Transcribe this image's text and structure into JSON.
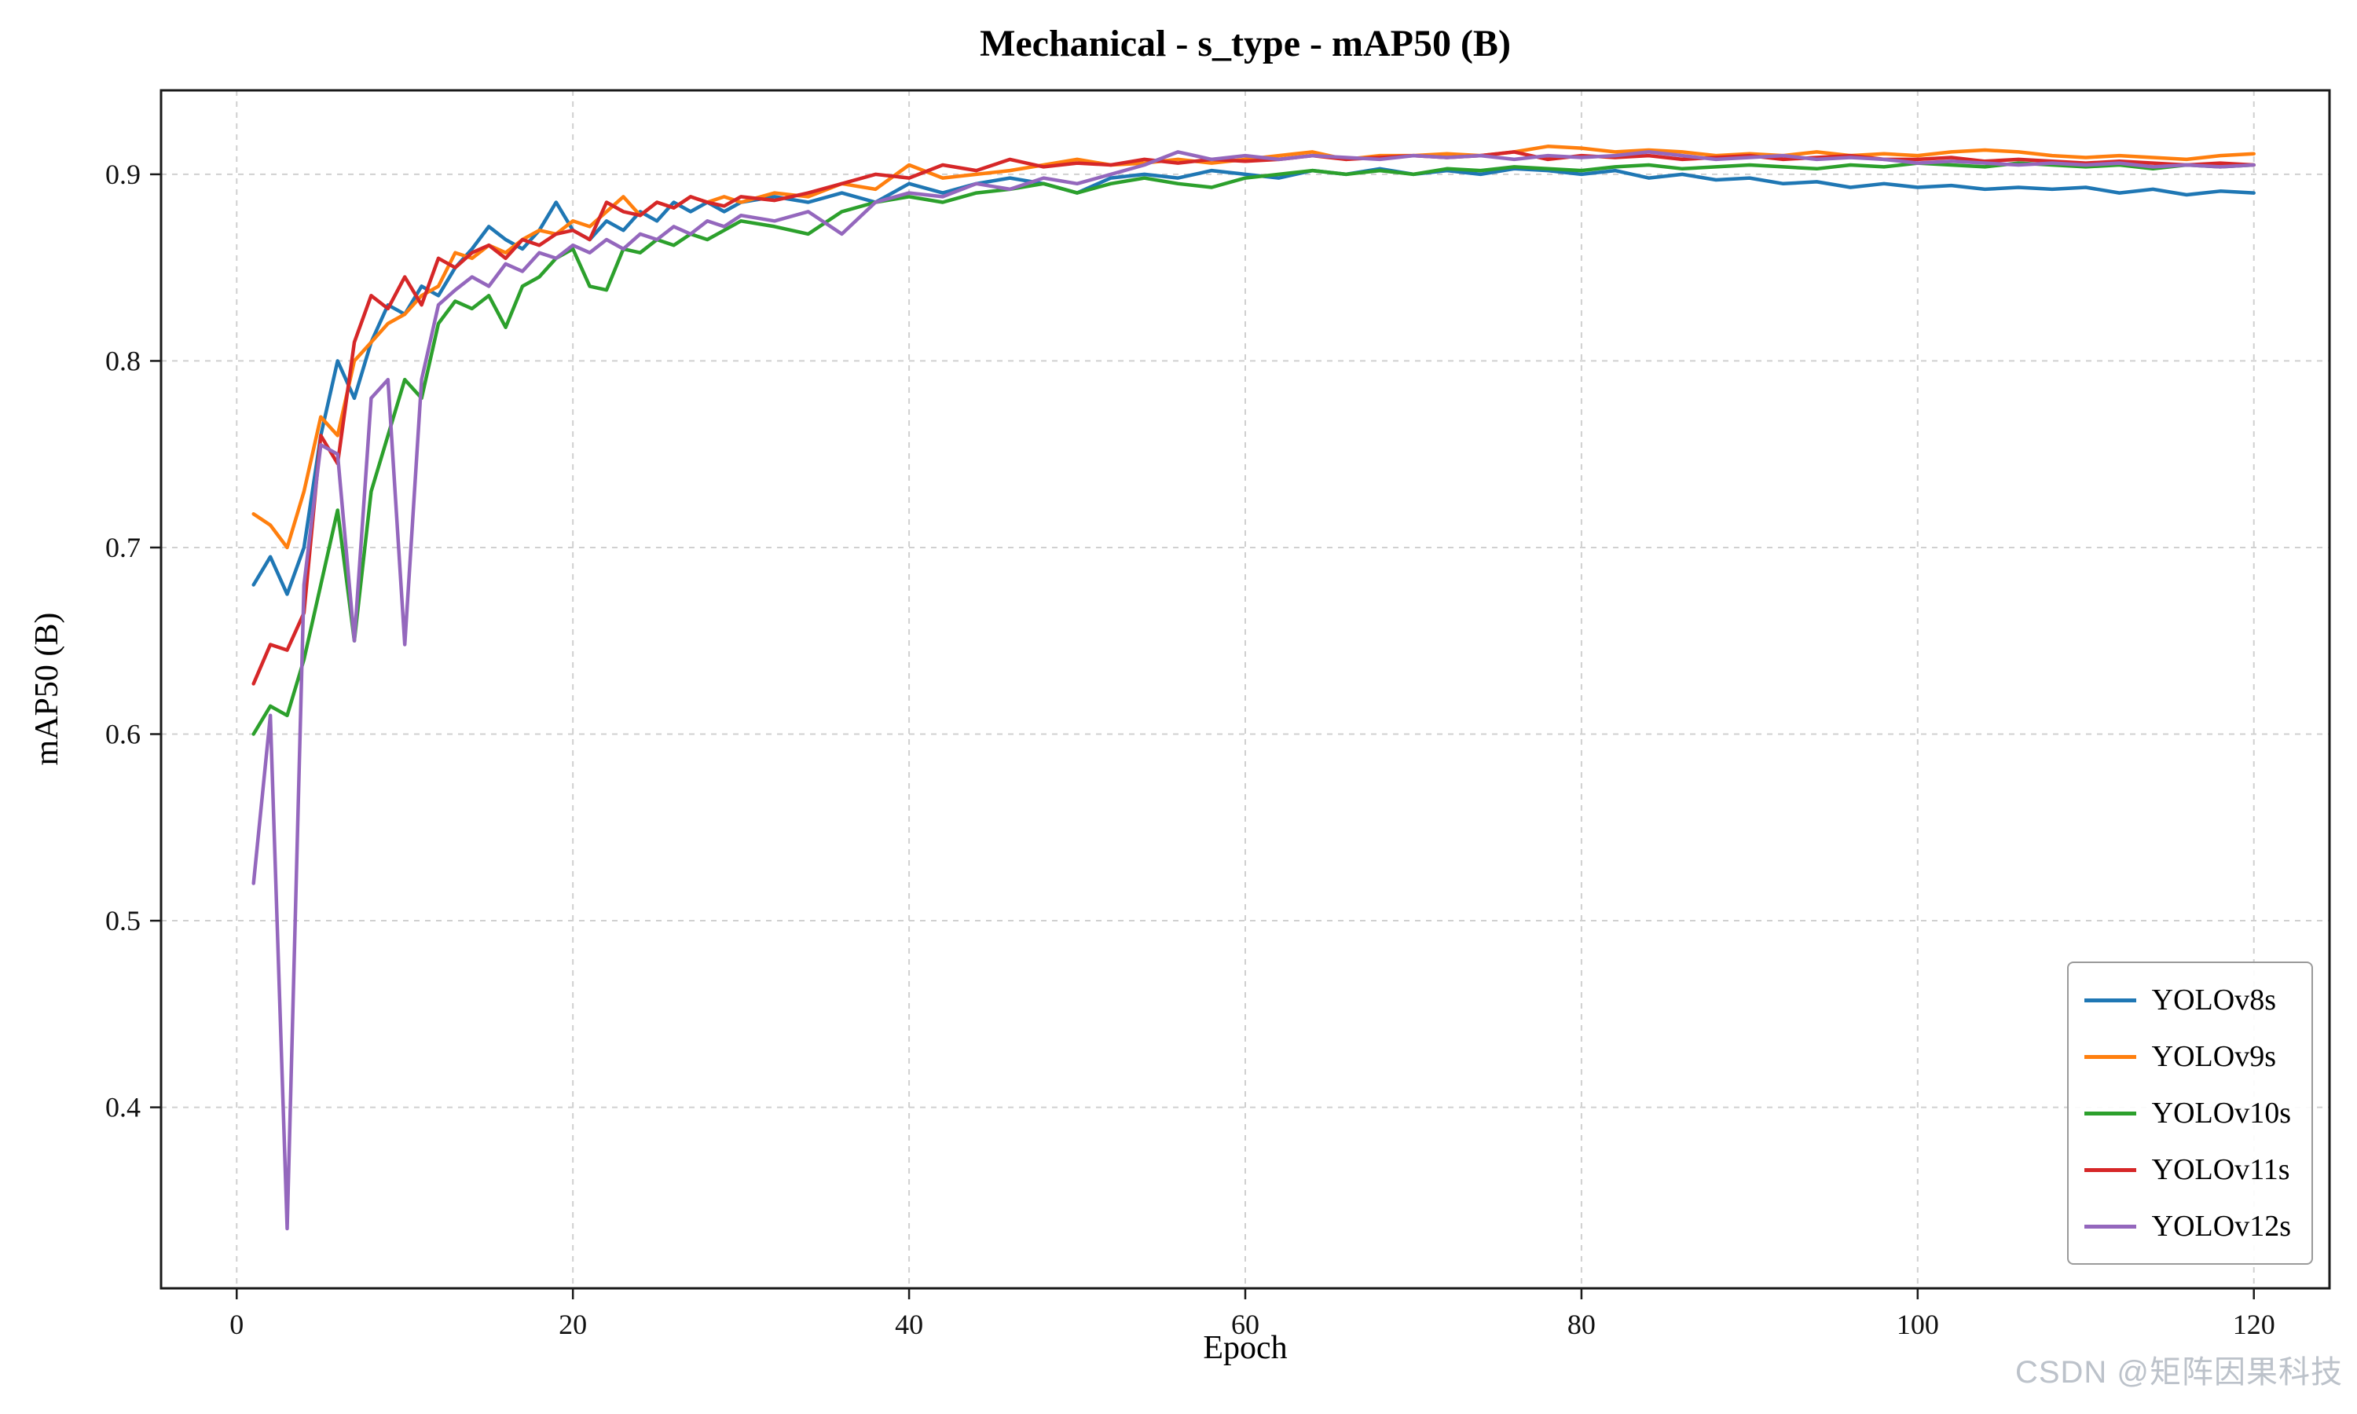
{
  "figure": {
    "watermark": "CSDN @矩阵因果科技"
  },
  "axes": {
    "x_ticks": [
      0,
      20,
      40,
      60,
      80,
      100,
      120
    ],
    "y_ticks": [
      0.4,
      0.5,
      0.6,
      0.7,
      0.8,
      0.9
    ],
    "grid": true
  },
  "chart_data": {
    "type": "line",
    "title": "Mechanical - s_type - mAP50 (B)",
    "xlabel": "Epoch",
    "ylabel": "mAP50 (B)",
    "xlim": [
      -4.5,
      124.5
    ],
    "ylim": [
      0.303,
      0.945
    ],
    "grid": true,
    "legend_position": "lower right",
    "x": [
      1,
      2,
      3,
      4,
      5,
      6,
      7,
      8,
      9,
      10,
      11,
      12,
      13,
      14,
      15,
      16,
      17,
      18,
      19,
      20,
      21,
      22,
      23,
      24,
      25,
      26,
      27,
      28,
      29,
      30,
      32,
      34,
      36,
      38,
      40,
      42,
      44,
      46,
      48,
      50,
      52,
      54,
      56,
      58,
      60,
      62,
      64,
      66,
      68,
      70,
      72,
      74,
      76,
      78,
      80,
      82,
      84,
      86,
      88,
      90,
      92,
      94,
      96,
      98,
      100,
      102,
      104,
      106,
      108,
      110,
      112,
      114,
      116,
      118,
      120
    ],
    "series": [
      {
        "name": "YOLOv8s",
        "color": "#1f77b4",
        "values": [
          0.68,
          0.695,
          0.675,
          0.7,
          0.76,
          0.8,
          0.78,
          0.81,
          0.83,
          0.825,
          0.84,
          0.835,
          0.85,
          0.86,
          0.872,
          0.865,
          0.86,
          0.87,
          0.885,
          0.87,
          0.865,
          0.875,
          0.87,
          0.88,
          0.875,
          0.885,
          0.88,
          0.885,
          0.88,
          0.885,
          0.888,
          0.885,
          0.89,
          0.885,
          0.895,
          0.89,
          0.895,
          0.898,
          0.895,
          0.89,
          0.898,
          0.9,
          0.898,
          0.902,
          0.9,
          0.898,
          0.902,
          0.9,
          0.903,
          0.9,
          0.902,
          0.9,
          0.903,
          0.902,
          0.9,
          0.902,
          0.898,
          0.9,
          0.897,
          0.898,
          0.895,
          0.896,
          0.893,
          0.895,
          0.893,
          0.894,
          0.892,
          0.893,
          0.892,
          0.893,
          0.89,
          0.892,
          0.889,
          0.891,
          0.89
        ]
      },
      {
        "name": "YOLOv9s",
        "color": "#ff7f0e",
        "values": [
          0.718,
          0.712,
          0.7,
          0.73,
          0.77,
          0.76,
          0.8,
          0.81,
          0.82,
          0.825,
          0.835,
          0.84,
          0.858,
          0.855,
          0.862,
          0.858,
          0.865,
          0.87,
          0.868,
          0.875,
          0.872,
          0.88,
          0.888,
          0.878,
          0.885,
          0.882,
          0.888,
          0.885,
          0.888,
          0.885,
          0.89,
          0.888,
          0.895,
          0.892,
          0.905,
          0.898,
          0.9,
          0.902,
          0.905,
          0.908,
          0.905,
          0.906,
          0.908,
          0.906,
          0.908,
          0.91,
          0.912,
          0.908,
          0.91,
          0.91,
          0.911,
          0.91,
          0.912,
          0.915,
          0.914,
          0.912,
          0.913,
          0.912,
          0.91,
          0.911,
          0.91,
          0.912,
          0.91,
          0.911,
          0.91,
          0.912,
          0.913,
          0.912,
          0.91,
          0.909,
          0.91,
          0.909,
          0.908,
          0.91,
          0.911
        ]
      },
      {
        "name": "YOLOv10s",
        "color": "#2ca02c",
        "values": [
          0.6,
          0.615,
          0.61,
          0.64,
          0.68,
          0.72,
          0.65,
          0.73,
          0.76,
          0.79,
          0.78,
          0.82,
          0.832,
          0.828,
          0.835,
          0.818,
          0.84,
          0.845,
          0.855,
          0.86,
          0.84,
          0.838,
          0.86,
          0.858,
          0.865,
          0.862,
          0.868,
          0.865,
          0.87,
          0.875,
          0.872,
          0.868,
          0.88,
          0.885,
          0.888,
          0.885,
          0.89,
          0.892,
          0.895,
          0.89,
          0.895,
          0.898,
          0.895,
          0.893,
          0.898,
          0.9,
          0.902,
          0.9,
          0.902,
          0.9,
          0.903,
          0.902,
          0.904,
          0.903,
          0.902,
          0.904,
          0.905,
          0.903,
          0.904,
          0.905,
          0.904,
          0.903,
          0.905,
          0.904,
          0.906,
          0.905,
          0.904,
          0.906,
          0.905,
          0.904,
          0.905,
          0.903,
          0.905,
          0.904,
          0.905
        ]
      },
      {
        "name": "YOLOv11s",
        "color": "#d62728",
        "values": [
          0.627,
          0.648,
          0.645,
          0.665,
          0.76,
          0.745,
          0.81,
          0.835,
          0.828,
          0.845,
          0.83,
          0.855,
          0.85,
          0.858,
          0.862,
          0.855,
          0.865,
          0.862,
          0.868,
          0.87,
          0.865,
          0.885,
          0.88,
          0.878,
          0.885,
          0.882,
          0.888,
          0.885,
          0.883,
          0.888,
          0.886,
          0.89,
          0.895,
          0.9,
          0.898,
          0.905,
          0.902,
          0.908,
          0.904,
          0.906,
          0.905,
          0.908,
          0.906,
          0.908,
          0.907,
          0.908,
          0.91,
          0.908,
          0.909,
          0.91,
          0.909,
          0.91,
          0.912,
          0.908,
          0.91,
          0.909,
          0.91,
          0.908,
          0.909,
          0.91,
          0.908,
          0.909,
          0.91,
          0.908,
          0.908,
          0.909,
          0.907,
          0.908,
          0.907,
          0.906,
          0.907,
          0.906,
          0.905,
          0.906,
          0.905
        ]
      },
      {
        "name": "YOLOv12s",
        "color": "#9467bd",
        "values": [
          0.52,
          0.61,
          0.335,
          0.68,
          0.755,
          0.75,
          0.65,
          0.78,
          0.79,
          0.648,
          0.79,
          0.83,
          0.838,
          0.845,
          0.84,
          0.852,
          0.848,
          0.858,
          0.855,
          0.862,
          0.858,
          0.865,
          0.86,
          0.868,
          0.865,
          0.872,
          0.868,
          0.875,
          0.872,
          0.878,
          0.875,
          0.88,
          0.868,
          0.885,
          0.89,
          0.888,
          0.895,
          0.892,
          0.898,
          0.895,
          0.9,
          0.905,
          0.912,
          0.908,
          0.91,
          0.908,
          0.91,
          0.909,
          0.908,
          0.91,
          0.909,
          0.91,
          0.908,
          0.91,
          0.909,
          0.91,
          0.912,
          0.91,
          0.908,
          0.909,
          0.91,
          0.908,
          0.909,
          0.908,
          0.906,
          0.907,
          0.906,
          0.905,
          0.906,
          0.905,
          0.906,
          0.904,
          0.905,
          0.904,
          0.905
        ]
      }
    ]
  }
}
